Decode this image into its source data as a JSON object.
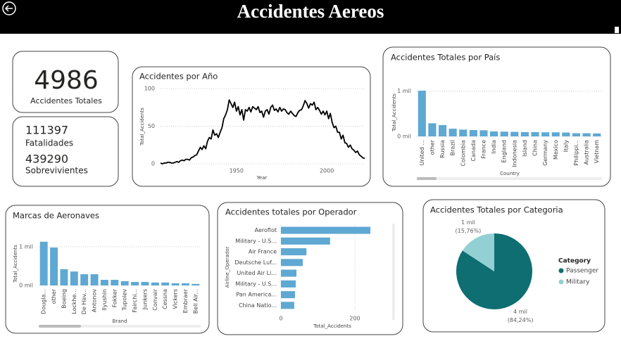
{
  "header": {
    "title": "Accidentes Aereos"
  },
  "kpis": [
    {
      "value": 4986,
      "label": "Accidentes Totales"
    },
    {
      "value": 111397,
      "label": "Fatalidades"
    },
    {
      "value": 439290,
      "label": "Sobrevivientes"
    }
  ],
  "chart_data": [
    {
      "type": "line",
      "title": "Accidentes por Año",
      "x_label": "Year",
      "y_label": "Total_Accidents",
      "color": "#000000",
      "grid": true,
      "x": [
        1908,
        1909,
        1910,
        1911,
        1912,
        1913,
        1914,
        1915,
        1916,
        1917,
        1918,
        1919,
        1920,
        1921,
        1922,
        1923,
        1924,
        1925,
        1926,
        1927,
        1928,
        1929,
        1930,
        1931,
        1932,
        1933,
        1934,
        1935,
        1936,
        1937,
        1938,
        1939,
        1940,
        1941,
        1942,
        1943,
        1944,
        1945,
        1946,
        1947,
        1948,
        1949,
        1950,
        1951,
        1952,
        1953,
        1954,
        1955,
        1956,
        1957,
        1958,
        1959,
        1960,
        1961,
        1962,
        1963,
        1964,
        1965,
        1966,
        1967,
        1968,
        1969,
        1970,
        1971,
        1972,
        1973,
        1974,
        1975,
        1976,
        1977,
        1978,
        1979,
        1980,
        1981,
        1982,
        1983,
        1984,
        1985,
        1986,
        1987,
        1988,
        1989,
        1990,
        1991,
        1992,
        1993,
        1994,
        1995,
        1996,
        1997,
        1998,
        1999,
        2000,
        2001,
        2002,
        2003,
        2004,
        2005,
        2006,
        2007,
        2008,
        2009,
        2010,
        2011,
        2012,
        2013,
        2014,
        2015,
        2016,
        2017,
        2018,
        2019,
        2020,
        2021
      ],
      "values": [
        1,
        0,
        1,
        1,
        2,
        2,
        1,
        1,
        2,
        3,
        2,
        4,
        5,
        4,
        6,
        6,
        5,
        8,
        9,
        11,
        12,
        17,
        22,
        19,
        24,
        20,
        30,
        35,
        33,
        45,
        38,
        40,
        35,
        42,
        48,
        60,
        65,
        72,
        85,
        80,
        75,
        82,
        70,
        76,
        65,
        72,
        58,
        72,
        70,
        75,
        69,
        76,
        74,
        72,
        76,
        68,
        70,
        62,
        70,
        72,
        66,
        75,
        78,
        71,
        73,
        69,
        75,
        70,
        73,
        72,
        68,
        66,
        70,
        67,
        64,
        63,
        68,
        71,
        72,
        77,
        84,
        80,
        74,
        80,
        78,
        82,
        72,
        75,
        71,
        66,
        70,
        65,
        70,
        60,
        67,
        55,
        48,
        50,
        42,
        42,
        33,
        38,
        28,
        27,
        22,
        25,
        20,
        18,
        15,
        17,
        12,
        10,
        8,
        7
      ],
      "xlim": [
        1908,
        2021
      ],
      "xticks": [
        1950,
        2000
      ],
      "ylim": [
        0,
        100
      ],
      "yticks": [
        0,
        50,
        100
      ]
    },
    {
      "type": "bar",
      "title": "Accidentes Totales por País",
      "x_label": "Country",
      "y_label": "Total_Accidents",
      "color": "#5fa8d3",
      "grid": true,
      "categories": [
        "United ...",
        "other",
        "Russia",
        "Brazil",
        "Colombia",
        "Canada",
        "France",
        "India",
        "England",
        "Indonesia",
        "Island",
        "China",
        "Germany",
        "Mexico",
        "Italy",
        "Philippi...",
        "Australia",
        "Vietnam"
      ],
      "values": [
        1010,
        290,
        250,
        170,
        150,
        140,
        135,
        110,
        105,
        100,
        95,
        95,
        90,
        90,
        85,
        70,
        70,
        65
      ],
      "ylim": [
        0,
        1150
      ],
      "yticks": [
        {
          "value": 0,
          "label": "0 mil"
        },
        {
          "value": 1000,
          "label": "1 mil"
        }
      ]
    },
    {
      "type": "bar",
      "title": "Marcas de Aeronaves",
      "x_label": "Brand",
      "y_label": "Total_Accidents",
      "color": "#5fa8d3",
      "grid": true,
      "categories": [
        "Dougla...",
        "other",
        "Boeing",
        "Lockhe...",
        "De Hav...",
        "Antonov",
        "Ilyushin",
        "Fokker",
        "Tupolev",
        "Fairchi...",
        "Junkers",
        "Convair",
        "Cessna",
        "Vickers",
        "Embraer",
        "Bell Air..."
      ],
      "values": [
        1130,
        980,
        420,
        360,
        290,
        290,
        145,
        145,
        110,
        90,
        90,
        75,
        75,
        55,
        55,
        40
      ],
      "ylim": [
        0,
        1200
      ],
      "yticks": [
        {
          "value": 0,
          "label": "0 mil"
        },
        {
          "value": 1000,
          "label": "1 mil"
        }
      ]
    },
    {
      "type": "bar",
      "orientation": "horizontal",
      "title": "Accidentes totales por Operador",
      "x_label": "Total_Accidents",
      "y_label": "Airline_Operador",
      "color": "#5fa8d3",
      "grid": true,
      "categories": [
        "Aeroflot",
        "Military - U.S...",
        "Air France",
        "Deutsche Luf...",
        "United Air Li...",
        "Military - U.S...",
        "Pan America...",
        "China Natio..."
      ],
      "values": [
        242,
        133,
        69,
        59,
        42,
        40,
        38,
        36
      ],
      "xlim": [
        0,
        280
      ],
      "xticks": [
        0,
        200
      ]
    },
    {
      "type": "pie",
      "title": "Accidentes Totales por Categoria",
      "legend_title": "Category",
      "categories": [
        "Passenger",
        "Military"
      ],
      "colors": [
        "#0e6e71",
        "#93d0d4"
      ],
      "values": [
        4200,
        786
      ],
      "value_labels": [
        "4 mil",
        "1 mil"
      ],
      "percent_labels": [
        "(84,24%)",
        "(15,76%)"
      ]
    }
  ]
}
